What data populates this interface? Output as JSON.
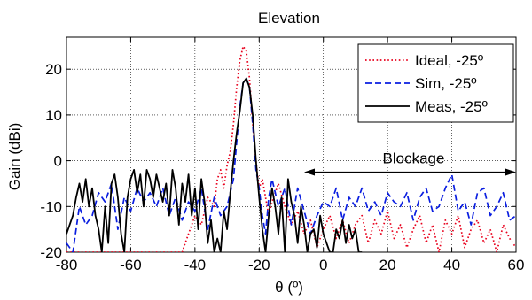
{
  "chart_data": {
    "type": "line",
    "title": "Elevation",
    "xlabel": "θ (º)",
    "ylabel": "Gain (dBi)",
    "xlim": [
      -80,
      60
    ],
    "ylim": [
      -20,
      27
    ],
    "xticks": [
      -80,
      -60,
      -40,
      -20,
      0,
      20,
      40,
      60
    ],
    "yticks": [
      -20,
      -10,
      0,
      10,
      20
    ],
    "xtick_labels": [
      "-80",
      "-60",
      "-40",
      "-20",
      "0",
      "20",
      "40",
      "60"
    ],
    "ytick_labels": [
      "-20",
      "-10",
      "0",
      "10",
      "20"
    ],
    "grid": true,
    "legend_position": "top-right",
    "series": [
      {
        "name": "Ideal, -25º",
        "color": "#e8001c",
        "style": "dotted",
        "x": [
          -80,
          -78,
          -76,
          -74,
          -72,
          -70,
          -68,
          -66,
          -64,
          -62,
          -60,
          -58,
          -56,
          -54,
          -52,
          -50,
          -48,
          -46,
          -44,
          -42,
          -40,
          -38,
          -36,
          -34,
          -33,
          -32,
          -31,
          -30,
          -29,
          -28,
          -27,
          -26,
          -25,
          -24,
          -23,
          -22,
          -21,
          -20,
          -19,
          -18,
          -17,
          -16,
          -14,
          -12,
          -10,
          -8,
          -6,
          -4,
          -2,
          0,
          2,
          4,
          6,
          8,
          10,
          12,
          14,
          16,
          18,
          20,
          22,
          24,
          26,
          28,
          30,
          32,
          34,
          36,
          38,
          40,
          42,
          44,
          46,
          48,
          50,
          52,
          54,
          56,
          58,
          60
        ],
        "y": [
          -20,
          -20,
          -20,
          -20,
          -20,
          -20,
          -20,
          -20,
          -20,
          -20,
          -20,
          -20,
          -20,
          -20,
          -20,
          -20,
          -20,
          -20,
          -20,
          -16,
          -12,
          -14,
          -8,
          -10,
          -4,
          -2,
          -6,
          -1,
          2,
          8,
          16,
          22,
          25,
          24,
          18,
          8,
          0,
          -6,
          -4,
          -8,
          -12,
          -9,
          -5,
          -10,
          -14,
          -11,
          -16,
          -13,
          -19,
          -15,
          -12,
          -17,
          -13,
          -18,
          -14,
          -12,
          -18,
          -13,
          -16,
          -11,
          -17,
          -14,
          -19,
          -15,
          -12,
          -18,
          -14,
          -20,
          -13,
          -16,
          -12,
          -19,
          -15,
          -13,
          -18,
          -15,
          -20,
          -14,
          -17,
          -19
        ]
      },
      {
        "name": "Sim, -25º",
        "color": "#0a1ee0",
        "style": "dashed",
        "x": [
          -80,
          -78,
          -76,
          -74,
          -72,
          -70,
          -68,
          -66,
          -64,
          -62,
          -60,
          -58,
          -56,
          -54,
          -52,
          -50,
          -48,
          -46,
          -44,
          -42,
          -40,
          -38,
          -36,
          -34,
          -32,
          -30,
          -28,
          -27,
          -26,
          -25,
          -24,
          -23,
          -22,
          -21,
          -20,
          -19,
          -18,
          -17,
          -16,
          -14,
          -12,
          -10,
          -8,
          -6,
          -4,
          -2,
          0,
          2,
          4,
          6,
          8,
          10,
          12,
          14,
          16,
          18,
          20,
          22,
          24,
          26,
          28,
          30,
          32,
          34,
          36,
          38,
          40,
          42,
          44,
          46,
          48,
          50,
          52,
          54,
          56,
          58,
          60
        ],
        "y": [
          -18,
          -20,
          -10,
          -14,
          -12,
          -7,
          -9,
          -5,
          -15,
          -8,
          -11,
          -6,
          -9,
          -7,
          -10,
          -6,
          -12,
          -8,
          -13,
          -9,
          -11,
          -6,
          -15,
          -8,
          -12,
          -10,
          -4,
          4,
          12,
          17,
          18,
          16,
          8,
          -2,
          -6,
          -12,
          -16,
          -8,
          -4,
          -10,
          -6,
          -14,
          -6,
          -11,
          -16,
          -12,
          -9,
          -10,
          -6,
          -13,
          -8,
          -10,
          -6,
          -11,
          -9,
          -12,
          -7,
          -9,
          -10,
          -7,
          -13,
          -8,
          -6,
          -11,
          -10,
          -6,
          -3,
          -11,
          -9,
          -14,
          -7,
          -6,
          -12,
          -10,
          -7,
          -13,
          -12
        ]
      },
      {
        "name": "Meas, -25º",
        "color": "#000000",
        "style": "solid",
        "x": [
          -80,
          -78,
          -77,
          -76,
          -75,
          -74,
          -73,
          -72,
          -71,
          -70,
          -69,
          -68,
          -67,
          -66,
          -65,
          -64,
          -63,
          -62,
          -61,
          -60,
          -59,
          -58,
          -57,
          -56,
          -55,
          -54,
          -53,
          -52,
          -51,
          -50,
          -49,
          -48,
          -47,
          -46,
          -45,
          -44,
          -43,
          -42,
          -41,
          -40,
          -39,
          -38,
          -37,
          -36,
          -35,
          -34,
          -33,
          -32,
          -31,
          -30,
          -29,
          -28,
          -27,
          -26,
          -25,
          -24,
          -23,
          -22,
          -21,
          -20,
          -19,
          -18,
          -17,
          -16,
          -15,
          -14,
          -13,
          -12,
          -11,
          -10,
          -9,
          -8,
          -7,
          -6,
          -5,
          -4,
          -3,
          -2,
          -1,
          0,
          1,
          2,
          3,
          4,
          5,
          6,
          7,
          8,
          9,
          10,
          11,
          12
        ],
        "y": [
          -16,
          -12,
          -8,
          -5,
          -9,
          -4,
          -10,
          -6,
          -12,
          -15,
          -20,
          -10,
          -18,
          -5,
          -3,
          -8,
          -16,
          -20,
          -8,
          -4,
          -2,
          -7,
          -3,
          -10,
          -2,
          -4,
          -8,
          -3,
          -6,
          -9,
          -5,
          -12,
          -2,
          -6,
          -14,
          -5,
          -9,
          -3,
          -12,
          -6,
          -15,
          -4,
          -9,
          -18,
          -13,
          -20,
          -17,
          -20,
          -11,
          -15,
          -7,
          0,
          6,
          11,
          17,
          18,
          16,
          10,
          0,
          -8,
          -15,
          -20,
          -12,
          -6,
          -10,
          -16,
          -8,
          -20,
          -4,
          -9,
          -12,
          -18,
          -10,
          -14,
          -20,
          -16,
          -15,
          -19,
          -12,
          -16,
          -18,
          -20,
          -20,
          -15,
          -17,
          -13,
          -18,
          -14,
          -17,
          -15,
          -20,
          -20
        ]
      }
    ],
    "annotation": {
      "text": "Blockage",
      "arrow_from_x": -6,
      "arrow_to_x": 60,
      "arrow_y": -2.5
    }
  }
}
